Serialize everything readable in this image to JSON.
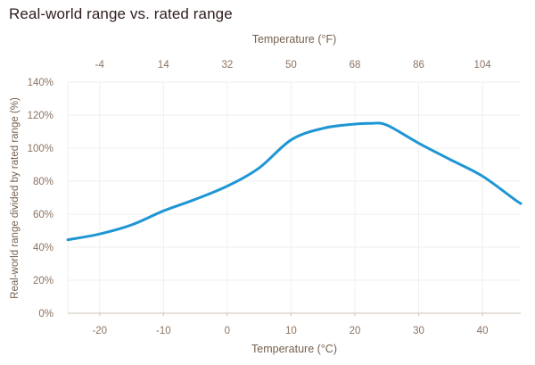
{
  "title": "Real-world range vs. rated range",
  "colors": {
    "line": "#1f96d4",
    "title_text": "#301e1e",
    "tick_text": "#8b7262",
    "axis_title_text": "#76604e",
    "grid_horizontal": "#efefef",
    "grid_vertical": "#f2f0ec",
    "axis_line": "#ccc1b5",
    "background": "#ffffff"
  },
  "chart_data": {
    "type": "line",
    "title": "Real-world range vs. rated range",
    "grid": true,
    "legend_position": "none",
    "x_axis_bottom": {
      "label": "Temperature (°C)",
      "tick_labels": [
        "-20",
        "-10",
        "0",
        "10",
        "20",
        "30",
        "40"
      ],
      "tick_values": [
        -20,
        -10,
        0,
        10,
        20,
        30,
        40
      ],
      "range": [
        -25,
        46
      ]
    },
    "x_axis_top": {
      "label": "Temperature (°F)",
      "tick_labels": [
        "-4",
        "14",
        "32",
        "50",
        "68",
        "86",
        "104"
      ],
      "tick_values_celsius": [
        -20,
        -10,
        0,
        10,
        20,
        30,
        40
      ]
    },
    "y_axis": {
      "label": "Real-world range divided by rated range (%)",
      "tick_labels": [
        "0%",
        "20%",
        "40%",
        "60%",
        "80%",
        "100%",
        "120%",
        "140%"
      ],
      "tick_values": [
        0,
        20,
        40,
        60,
        80,
        100,
        120,
        140
      ],
      "range": [
        0,
        140
      ]
    },
    "series": [
      {
        "name": "Real-world range divided by rated range (%)",
        "points": [
          [
            -25,
            44.5
          ],
          [
            -20,
            48
          ],
          [
            -15,
            53.5
          ],
          [
            -10,
            62
          ],
          [
            -5,
            69
          ],
          [
            0,
            77
          ],
          [
            5,
            88
          ],
          [
            10,
            105
          ],
          [
            15,
            112
          ],
          [
            20,
            114.6
          ],
          [
            22.5,
            115
          ],
          [
            25,
            114
          ],
          [
            30,
            103
          ],
          [
            35,
            93
          ],
          [
            40,
            83
          ],
          [
            45,
            69
          ],
          [
            46,
            66.5
          ]
        ]
      }
    ]
  }
}
